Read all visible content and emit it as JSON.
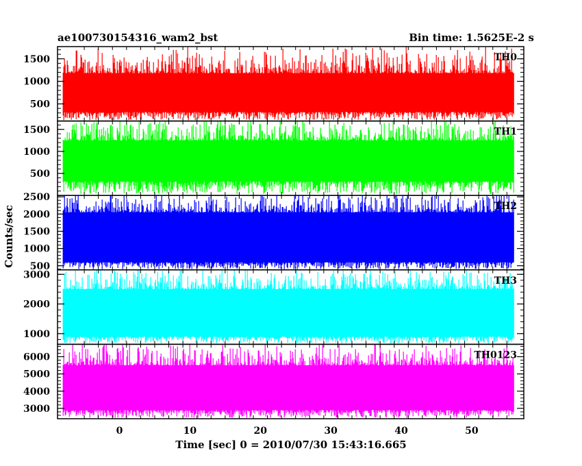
{
  "chart_data": {
    "type": "line",
    "title_left": "ae100730154316_wam2_bst",
    "title_right": "Bin time: 1.5625E-2 s",
    "xlabel": "Time [sec] 0 = 2010/07/30 15:43:16.665",
    "ylabel": "Counts/sec",
    "xlim": [
      -8.8,
      57.4
    ],
    "xticks": [
      0,
      10,
      20,
      30,
      40,
      50
    ],
    "data_range": [
      -8,
      56
    ],
    "panels": [
      {
        "name": "TH0",
        "color": "#ff0000",
        "ylim": [
          120,
          1770
        ],
        "yticks": [
          500,
          1000,
          1500
        ],
        "baseline": 320,
        "upper": 1180,
        "spike": 1650
      },
      {
        "name": "TH1",
        "color": "#00ff00",
        "ylim": [
          0,
          1690
        ],
        "yticks": [
          500,
          1000,
          1500
        ],
        "baseline": 320,
        "upper": 1250,
        "spike": 1650
      },
      {
        "name": "TH2",
        "color": "#0000ff",
        "ylim": [
          380,
          2540
        ],
        "yticks": [
          500,
          1000,
          1500,
          2000,
          2500
        ],
        "baseline": 600,
        "upper": 2050,
        "spike": 2500
      },
      {
        "name": "TH3",
        "color": "#00ffff",
        "ylim": [
          640,
          3150
        ],
        "yticks": [
          1000,
          2000,
          3000
        ],
        "baseline": 900,
        "upper": 2500,
        "spike": 3100
      },
      {
        "name": "TH0123",
        "color": "#ff00ff",
        "ylim": [
          2400,
          6720
        ],
        "yticks": [
          3000,
          4000,
          5000,
          6000
        ],
        "baseline": 2900,
        "upper": 5500,
        "spike": 6500
      }
    ]
  }
}
